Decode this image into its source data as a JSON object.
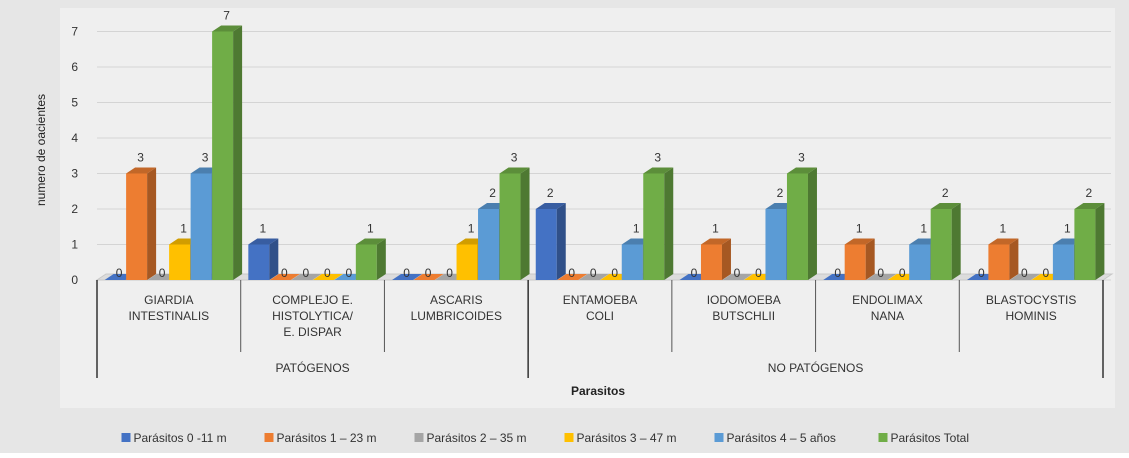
{
  "chart_data": {
    "type": "bar",
    "ylabel": "numero de oacientes",
    "xlabel": "Parasitos",
    "ylim": [
      0,
      7
    ],
    "yticks": [
      "0",
      "1",
      "2",
      "3",
      "4",
      "5",
      "6",
      "7"
    ],
    "grid": true,
    "legend_position": "bottom",
    "groups": [
      {
        "label": "PATÓGENOS",
        "categories": [
          0,
          1,
          2
        ]
      },
      {
        "label": "NO PATÓGENOS",
        "categories": [
          3,
          4,
          5,
          6
        ]
      }
    ],
    "categories": [
      [
        "GIARDIA",
        "INTESTINALIS"
      ],
      [
        "COMPLEJO E.",
        "HISTOLYTICA/",
        "E. DISPAR"
      ],
      [
        "ASCARIS",
        "LUMBRICOIDES"
      ],
      [
        "ENTAMOEBA",
        "COLI"
      ],
      [
        "IODOMOEBA",
        "BUTSCHLII"
      ],
      [
        "ENDOLIMAX",
        "NANA"
      ],
      [
        "BLASTOCYSTIS",
        "HOMINIS"
      ]
    ],
    "series": [
      {
        "name": "Parásitos 0 -11 m",
        "color": "#4472c4",
        "values": [
          0,
          1,
          0,
          2,
          0,
          0,
          0
        ]
      },
      {
        "name": "Parásitos 1 – 23 m",
        "color": "#ed7d31",
        "values": [
          3,
          0,
          0,
          0,
          1,
          1,
          1
        ]
      },
      {
        "name": "Parásitos 2 – 35 m",
        "color": "#a5a5a5",
        "values": [
          0,
          0,
          0,
          0,
          0,
          0,
          0
        ]
      },
      {
        "name": "Parásitos 3 – 47 m",
        "color": "#ffc000",
        "values": [
          1,
          0,
          1,
          0,
          0,
          0,
          0
        ]
      },
      {
        "name": "Parásitos 4 – 5 años",
        "color": "#5b9bd5",
        "values": [
          3,
          0,
          2,
          1,
          2,
          1,
          1
        ]
      },
      {
        "name": "Parásitos Total",
        "color": "#70ad47",
        "values": [
          7,
          1,
          3,
          3,
          3,
          2,
          2
        ]
      }
    ]
  }
}
